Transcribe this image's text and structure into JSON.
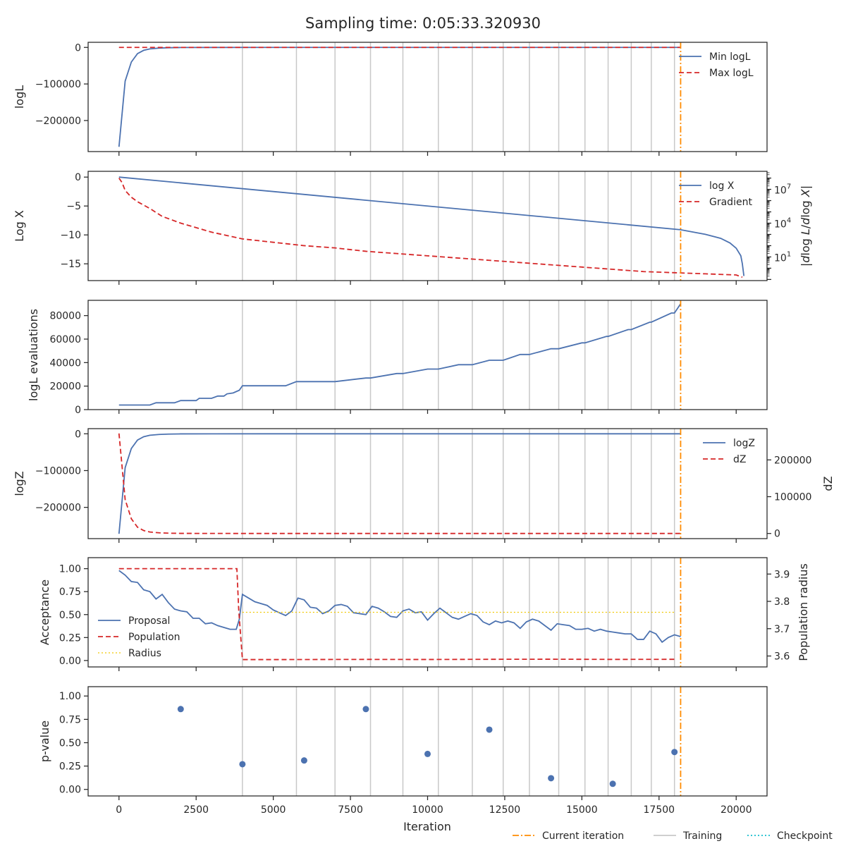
{
  "chart_data": {
    "title": "Sampling time: 0:05:33.320930",
    "type": "line",
    "xlabel": "Iteration",
    "xlim": [
      -1000,
      21000
    ],
    "xticks": [
      0,
      2500,
      5000,
      7500,
      10000,
      12500,
      15000,
      17500,
      20000
    ],
    "current_iteration": 18200,
    "training_iterations": [
      4000,
      5750,
      7000,
      8150,
      9200,
      10350,
      11450,
      12450,
      13300,
      14250,
      15100,
      15850,
      16600,
      17250,
      18000
    ],
    "colors": {
      "blue": "#4c72b0",
      "red": "#d62728",
      "orange": "#ff8c00",
      "training": "#c8c8c8",
      "checkpoint": "#17becf",
      "radius": "#f0c800"
    },
    "panels": [
      {
        "ylabel": "logL",
        "ylim": [
          -285000,
          14000
        ],
        "yticks": [
          0,
          -100000,
          -200000
        ],
        "ytick_labels": [
          "0",
          "−100000",
          "−200000"
        ],
        "series": [
          {
            "name": "Min logL",
            "style": "solid",
            "color": "blue",
            "x": [
              0,
              200,
              400,
              600,
              800,
              1000,
              1300,
              1600,
              2000,
              3000,
              5000,
              18200
            ],
            "y": [
              -272000,
              -92000,
              -40000,
              -17000,
              -8000,
              -4000,
              -1800,
              -800,
              -300,
              -80,
              -15,
              -3
            ]
          },
          {
            "name": "Max logL",
            "style": "dashed",
            "color": "red",
            "x": [
              0,
              18200
            ],
            "y": [
              0,
              0
            ]
          }
        ]
      },
      {
        "ylabel": "Log X",
        "ylim": [
          -17.9,
          1.0
        ],
        "yticks": [
          0,
          -5,
          -10,
          -15
        ],
        "ytick_labels": [
          "0",
          "−5",
          "−10",
          "−15"
        ],
        "right_ylabel": "|d log L/d log X|",
        "right_ylog": true,
        "right_ylim_log10": [
          -1.1,
          8.6
        ],
        "right_yticks": [
          {
            "base": "10",
            "exp": "7",
            "value": 7
          },
          {
            "base": "10",
            "exp": "4",
            "value": 4
          },
          {
            "base": "10",
            "exp": "1",
            "value": 1
          }
        ],
        "series": [
          {
            "name": "log X",
            "style": "solid",
            "color": "blue",
            "x": [
              0,
              18200,
              19000,
              19500,
              19800,
              20000,
              20150,
              20200,
              20250
            ],
            "y": [
              0,
              -9.1,
              -9.9,
              -10.6,
              -11.4,
              -12.3,
              -13.6,
              -15.0,
              -17.1
            ]
          },
          {
            "name": "Gradient",
            "style": "dashed",
            "color": "red",
            "axis": "right",
            "x": [
              0,
              100,
              200,
              400,
              600,
              800,
              1000,
              1400,
              2000,
              2500,
              3000,
              3500,
              4000,
              5000,
              6000,
              7000,
              8000,
              9000,
              10000,
              11000,
              12000,
              13000,
              14000,
              15000,
              16000,
              17000,
              18000,
              19000,
              20000,
              20200
            ],
            "y_log10": [
              8.0,
              7.6,
              6.9,
              6.3,
              5.9,
              5.6,
              5.3,
              4.6,
              4.0,
              3.6,
              3.2,
              2.9,
              2.6,
              2.3,
              2.0,
              1.8,
              1.5,
              1.3,
              1.1,
              0.9,
              0.7,
              0.5,
              0.3,
              0.1,
              -0.1,
              -0.3,
              -0.4,
              -0.5,
              -0.6,
              -0.8
            ]
          }
        ]
      },
      {
        "ylabel": "logL evaluations",
        "ylim": [
          0,
          93000
        ],
        "yticks": [
          0,
          20000,
          40000,
          60000,
          80000
        ],
        "ytick_labels": [
          "0",
          "20000",
          "40000",
          "60000",
          "80000"
        ],
        "series": [
          {
            "name": "logL evaluations",
            "style": "solid",
            "color": "blue",
            "x": [
              0,
              1000,
              1200,
              1800,
              2000,
              2500,
              2600,
              3000,
              3200,
              3400,
              3500,
              3700,
              3900,
              4000,
              5000,
              5400,
              5750,
              7000,
              8000,
              8150,
              9000,
              9200,
              10000,
              10350,
              11000,
              11450,
              12000,
              12450,
              13000,
              13300,
              14000,
              14250,
              15000,
              15100,
              15800,
              15850,
              16500,
              16600,
              17200,
              17250,
              17900,
              18000,
              18200
            ],
            "y": [
              3900,
              3900,
              5800,
              5800,
              7700,
              7700,
              9600,
              9600,
              11500,
              11500,
              13400,
              14200,
              16500,
              20300,
              20300,
              20300,
              23800,
              23800,
              26900,
              26900,
              30700,
              30700,
              34500,
              34500,
              38200,
              38200,
              42000,
              42000,
              46900,
              46900,
              51800,
              51800,
              56800,
              56800,
              62300,
              62300,
              68100,
              68100,
              74400,
              74400,
              82200,
              82200,
              90100
            ]
          }
        ]
      },
      {
        "ylabel": "logZ",
        "ylim": [
          -285000,
          14000
        ],
        "yticks": [
          0,
          -100000,
          -200000
        ],
        "ytick_labels": [
          "0",
          "−100000",
          "−200000"
        ],
        "right_ylabel": "dZ",
        "right_ylim": [
          -14000,
          285000
        ],
        "right_yticks": [
          0,
          100000,
          200000
        ],
        "series": [
          {
            "name": "logZ",
            "style": "solid",
            "color": "blue",
            "x": [
              0,
              200,
              400,
              600,
              800,
              1000,
              1300,
              1600,
              2000,
              3000,
              5000,
              18200
            ],
            "y": [
              -272000,
              -92000,
              -40000,
              -17000,
              -8000,
              -4000,
              -1800,
              -800,
              -300,
              -80,
              -15,
              -3
            ]
          },
          {
            "name": "dZ",
            "style": "dashed",
            "color": "red",
            "axis": "right",
            "x": [
              0,
              200,
              400,
              600,
              800,
              1000,
              1300,
              1600,
              2000,
              3000,
              5000,
              18200
            ],
            "y": [
              272000,
              92000,
              40000,
              17000,
              8000,
              4000,
              1800,
              800,
              300,
              80,
              15,
              3
            ]
          }
        ]
      },
      {
        "ylabel": "Acceptance",
        "ylim": [
          -0.07,
          1.12
        ],
        "yticks": [
          0,
          0.25,
          0.5,
          0.75,
          1.0
        ],
        "ytick_labels": [
          "0.00",
          "0.25",
          "0.50",
          "0.75",
          "1.00"
        ],
        "right_ylabel": "Population radius",
        "right_ylim": [
          3.56,
          3.96
        ],
        "right_yticks": [
          3.6,
          3.7,
          3.8,
          3.9
        ],
        "series": [
          {
            "name": "Proposal",
            "style": "solid",
            "color": "blue",
            "x": [
              0,
              200,
              400,
              600,
              800,
              1000,
              1200,
              1400,
              1600,
              1800,
              2000,
              2200,
              2400,
              2600,
              2800,
              3000,
              3200,
              3400,
              3600,
              3800,
              3900,
              4000,
              4200,
              4400,
              4600,
              4800,
              5000,
              5200,
              5400,
              5600,
              5800,
              6000,
              6200,
              6400,
              6600,
              6800,
              7000,
              7200,
              7400,
              7600,
              7800,
              8000,
              8200,
              8400,
              8600,
              8800,
              9000,
              9200,
              9400,
              9600,
              9800,
              10000,
              10200,
              10400,
              10600,
              10800,
              11000,
              11200,
              11400,
              11600,
              11800,
              12000,
              12200,
              12400,
              12600,
              12800,
              13000,
              13200,
              13400,
              13600,
              13800,
              14000,
              14200,
              14400,
              14600,
              14800,
              15000,
              15200,
              15400,
              15600,
              15800,
              16000,
              16200,
              16400,
              16600,
              16800,
              17000,
              17200,
              17400,
              17600,
              17800,
              18000,
              18200
            ],
            "y": [
              0.98,
              0.93,
              0.86,
              0.85,
              0.77,
              0.75,
              0.67,
              0.72,
              0.63,
              0.56,
              0.54,
              0.53,
              0.46,
              0.46,
              0.4,
              0.41,
              0.38,
              0.36,
              0.34,
              0.34,
              0.45,
              0.72,
              0.68,
              0.64,
              0.62,
              0.6,
              0.55,
              0.52,
              0.49,
              0.54,
              0.68,
              0.66,
              0.58,
              0.57,
              0.51,
              0.54,
              0.6,
              0.61,
              0.59,
              0.52,
              0.51,
              0.5,
              0.59,
              0.57,
              0.53,
              0.48,
              0.47,
              0.54,
              0.56,
              0.52,
              0.53,
              0.44,
              0.51,
              0.57,
              0.52,
              0.47,
              0.45,
              0.48,
              0.51,
              0.49,
              0.42,
              0.39,
              0.43,
              0.41,
              0.43,
              0.41,
              0.35,
              0.42,
              0.45,
              0.43,
              0.38,
              0.33,
              0.4,
              0.39,
              0.38,
              0.34,
              0.34,
              0.35,
              0.32,
              0.34,
              0.32,
              0.31,
              0.3,
              0.29,
              0.29,
              0.23,
              0.23,
              0.32,
              0.29,
              0.2,
              0.25,
              0.28,
              0.26
            ]
          },
          {
            "name": "Population",
            "style": "dashed",
            "color": "red",
            "x": [
              0,
              3820,
              3880,
              4000,
              5000,
              8000,
              10000,
              12000,
              14000,
              16000,
              18000
            ],
            "y": [
              1.0,
              1.0,
              0.55,
              0.01,
              0.01,
              0.012,
              0.011,
              0.013,
              0.014,
              0.012,
              0.013
            ]
          },
          {
            "name": "Radius",
            "style": "dotted",
            "color": "radius",
            "x": [
              4000,
              18000
            ],
            "y_right": [
              3.76,
              3.76
            ]
          }
        ]
      },
      {
        "ylabel": "p-value",
        "ylim": [
          -0.07,
          1.1
        ],
        "yticks": [
          0,
          0.25,
          0.5,
          0.75,
          1.0
        ],
        "ytick_labels": [
          "0.00",
          "0.25",
          "0.50",
          "0.75",
          "1.00"
        ],
        "series": [
          {
            "name": "p-value",
            "style": "markers",
            "color": "blue",
            "x": [
              2000,
              4000,
              6000,
              8000,
              10000,
              12000,
              14000,
              16000,
              18000
            ],
            "y": [
              0.86,
              0.27,
              0.31,
              0.86,
              0.38,
              0.64,
              0.12,
              0.06,
              0.4
            ]
          }
        ]
      }
    ],
    "legends": [
      {
        "panel": 0,
        "entries": [
          {
            "label": "Min logL",
            "style": "solid",
            "color": "blue"
          },
          {
            "label": "Max logL",
            "style": "dashed",
            "color": "red"
          }
        ]
      },
      {
        "panel": 1,
        "entries": [
          {
            "label": "log X",
            "style": "solid",
            "color": "blue"
          },
          {
            "label": "Gradient",
            "style": "dashed",
            "color": "red"
          }
        ]
      },
      {
        "panel": 3,
        "entries": [
          {
            "label": "logZ",
            "style": "solid",
            "color": "blue"
          },
          {
            "label": "dZ",
            "style": "dashed",
            "color": "red"
          }
        ]
      },
      {
        "panel": 4,
        "entries": [
          {
            "label": "Proposal",
            "style": "solid",
            "color": "blue"
          },
          {
            "label": "Population",
            "style": "dashed",
            "color": "red"
          },
          {
            "label": "Radius",
            "style": "dotted",
            "color": "radius"
          }
        ]
      }
    ],
    "figure_legend": [
      {
        "label": "Current iteration",
        "style": "dashdot",
        "color": "orange"
      },
      {
        "label": "Training",
        "style": "solid",
        "color": "training"
      },
      {
        "label": "Checkpoint",
        "style": "dotted",
        "color": "checkpoint"
      }
    ]
  }
}
